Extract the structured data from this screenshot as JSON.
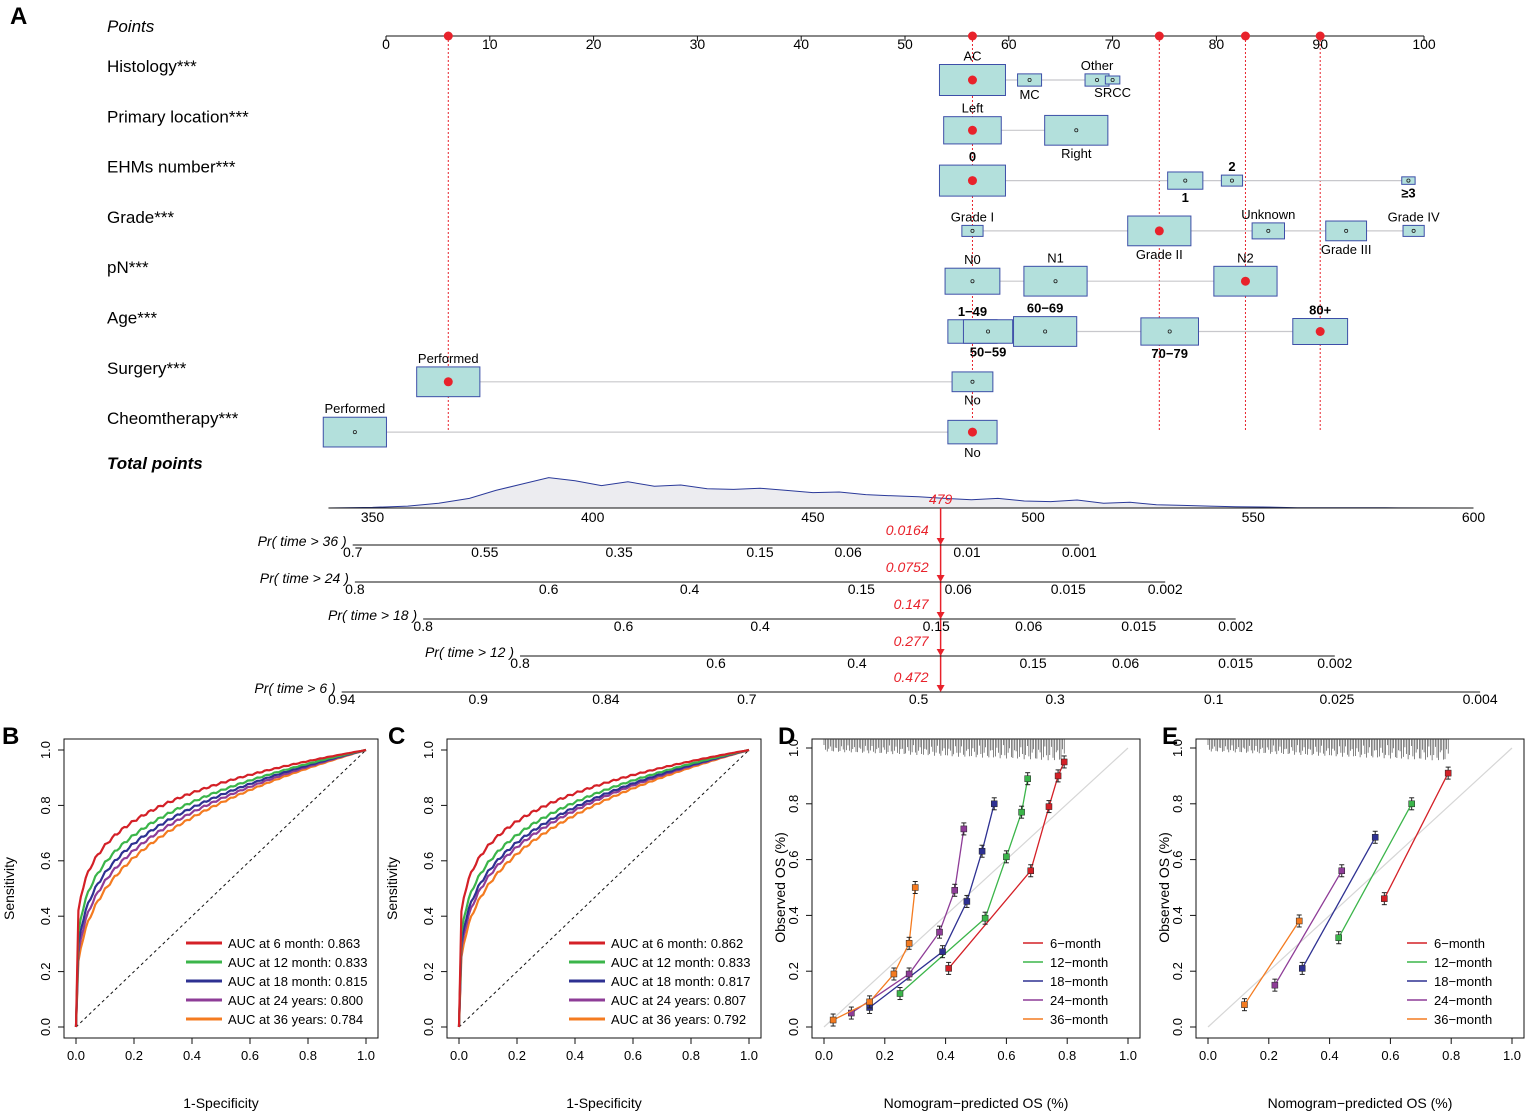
{
  "figure": {
    "panel_labels": [
      "A",
      "B",
      "C",
      "D",
      "E"
    ]
  },
  "colors": {
    "box_fill": "#b3e0dc",
    "box_stroke": "#3d4fa8",
    "marker": "#e8222b",
    "axis": "#111111",
    "density_fill": "#ececf0",
    "density_line": "#2b3a9a",
    "prob_red": "#e8222b"
  },
  "chart_data": [
    {
      "type": "nomogram",
      "panel": "A",
      "points_axis": {
        "label": "Points",
        "range": [
          0,
          100
        ],
        "ticks": [
          0,
          10,
          20,
          30,
          40,
          50,
          60,
          70,
          80,
          90,
          100
        ]
      },
      "selected_points": [
        6,
        56.5,
        74.5,
        82.8,
        90
      ],
      "variables": [
        {
          "label": "Histology***",
          "levels": [
            {
              "name": "AC",
              "points": 56.5,
              "weight": 1.0,
              "selected": true,
              "label_pos": "above"
            },
            {
              "name": "MC",
              "points": 62,
              "weight": 0.25,
              "selected": false,
              "label_pos": "below"
            },
            {
              "name": "Other",
              "points": 68.5,
              "weight": 0.25,
              "selected": false,
              "label_pos": "above"
            },
            {
              "name": "SRCC",
              "points": 70,
              "weight": 0.08,
              "selected": false,
              "label_pos": "below"
            }
          ]
        },
        {
          "label": "Primary location***",
          "levels": [
            {
              "name": "Left",
              "points": 56.5,
              "weight": 0.85,
              "selected": true,
              "label_pos": "above"
            },
            {
              "name": "Right",
              "points": 66.5,
              "weight": 0.95,
              "selected": false,
              "label_pos": "below"
            }
          ]
        },
        {
          "label": "EHMs number***",
          "levels": [
            {
              "name": "0",
              "points": 56.5,
              "weight": 1.0,
              "selected": true,
              "label_pos": "above"
            },
            {
              "name": "1",
              "points": 77,
              "weight": 0.45,
              "selected": false,
              "label_pos": "below"
            },
            {
              "name": "2",
              "points": 81.5,
              "weight": 0.2,
              "selected": false,
              "label_pos": "above"
            },
            {
              "name": "≥3",
              "points": 98.5,
              "weight": 0.06,
              "selected": false,
              "label_pos": "below"
            }
          ]
        },
        {
          "label": "Grade***",
          "levels": [
            {
              "name": "Grade I",
              "points": 56.5,
              "weight": 0.2,
              "selected": false,
              "label_pos": "above"
            },
            {
              "name": "Grade II",
              "points": 74.5,
              "weight": 0.95,
              "selected": true,
              "label_pos": "below"
            },
            {
              "name": "Unknown",
              "points": 85,
              "weight": 0.4,
              "selected": false,
              "label_pos": "above"
            },
            {
              "name": "Grade III",
              "points": 92.5,
              "weight": 0.55,
              "selected": false,
              "label_pos": "below"
            },
            {
              "name": "Grade IV",
              "points": 99,
              "weight": 0.2,
              "selected": false,
              "label_pos": "above"
            }
          ]
        },
        {
          "label": "pN***",
          "levels": [
            {
              "name": "N0",
              "points": 56.5,
              "weight": 0.8,
              "selected": false,
              "label_pos": "above"
            },
            {
              "name": "N1",
              "points": 64.5,
              "weight": 0.95,
              "selected": false,
              "label_pos": "above"
            },
            {
              "name": "N2",
              "points": 82.8,
              "weight": 0.95,
              "selected": true,
              "label_pos": "above"
            }
          ]
        },
        {
          "label": "Age***",
          "levels": [
            {
              "name": "1−49",
              "points": 56.5,
              "weight": 0.7,
              "selected": false,
              "label_pos": "above"
            },
            {
              "name": "50−59",
              "points": 58,
              "weight": 0.7,
              "selected": false,
              "label_pos": "below"
            },
            {
              "name": "60−69",
              "points": 63.5,
              "weight": 0.95,
              "selected": false,
              "label_pos": "above"
            },
            {
              "name": "70−79",
              "points": 75.5,
              "weight": 0.85,
              "selected": false,
              "label_pos": "below"
            },
            {
              "name": "80+",
              "points": 90,
              "weight": 0.8,
              "selected": true,
              "label_pos": "above"
            }
          ]
        },
        {
          "label": "Surgery***",
          "levels": [
            {
              "name": "Performed",
              "points": 6,
              "weight": 0.95,
              "selected": true,
              "label_pos": "above"
            },
            {
              "name": "No",
              "points": 56.5,
              "weight": 0.55,
              "selected": false,
              "label_pos": "below"
            }
          ]
        },
        {
          "label": "Cheomtherapy***",
          "levels": [
            {
              "name": "Performed",
              "points": -3,
              "weight": 0.95,
              "selected": false,
              "label_pos": "above"
            },
            {
              "name": "No",
              "points": 56.5,
              "weight": 0.7,
              "selected": true,
              "label_pos": "below"
            }
          ]
        }
      ],
      "total_points": {
        "label": "Total points",
        "range": [
          340,
          600
        ],
        "ticks": [
          350,
          400,
          450,
          500,
          550,
          600
        ],
        "value": 479,
        "value_label": "479",
        "density": [
          [
            340,
            0
          ],
          [
            350,
            0.02
          ],
          [
            358,
            0.06
          ],
          [
            365,
            0.15
          ],
          [
            372,
            0.3
          ],
          [
            378,
            0.55
          ],
          [
            384,
            0.75
          ],
          [
            390,
            0.95
          ],
          [
            396,
            0.85
          ],
          [
            402,
            0.7
          ],
          [
            408,
            0.82
          ],
          [
            414,
            0.68
          ],
          [
            420,
            0.72
          ],
          [
            426,
            0.6
          ],
          [
            432,
            0.58
          ],
          [
            438,
            0.62
          ],
          [
            444,
            0.55
          ],
          [
            450,
            0.48
          ],
          [
            456,
            0.5
          ],
          [
            462,
            0.42
          ],
          [
            468,
            0.38
          ],
          [
            474,
            0.35
          ],
          [
            480,
            0.3
          ],
          [
            486,
            0.26
          ],
          [
            492,
            0.3
          ],
          [
            498,
            0.22
          ],
          [
            504,
            0.2
          ],
          [
            510,
            0.25
          ],
          [
            516,
            0.15
          ],
          [
            522,
            0.18
          ],
          [
            528,
            0.1
          ],
          [
            534,
            0.08
          ],
          [
            540,
            0.06
          ],
          [
            546,
            0.04
          ],
          [
            552,
            0.03
          ],
          [
            560,
            0.01
          ],
          [
            580,
            0.005
          ],
          [
            598,
            0
          ]
        ]
      },
      "probability_axes": [
        {
          "label": "Pr( time > 36 )",
          "ticks": [
            {
              "label": "0.7",
              "total": 345.5
            },
            {
              "label": "0.55",
              "total": 375.5
            },
            {
              "label": "0.35",
              "total": 406
            },
            {
              "label": "0.15",
              "total": 438
            },
            {
              "label": "0.06",
              "total": 458
            },
            {
              "label": "0.01",
              "total": 485
            },
            {
              "label": "0.001",
              "total": 510.5
            }
          ],
          "line_from_total": 345.5,
          "line_to_total": 510.5,
          "value_label": "0.0164"
        },
        {
          "label": "Pr( time > 24 )",
          "ticks": [
            {
              "label": "0.8",
              "total": 346
            },
            {
              "label": "0.6",
              "total": 390
            },
            {
              "label": "0.4",
              "total": 422
            },
            {
              "label": "0.15",
              "total": 461
            },
            {
              "label": "0.06",
              "total": 483
            },
            {
              "label": "0.015",
              "total": 508
            },
            {
              "label": "0.002",
              "total": 530
            }
          ],
          "line_from_total": 346,
          "line_to_total": 530,
          "value_label": "0.0752"
        },
        {
          "label": "Pr( time > 18 )",
          "ticks": [
            {
              "label": "0.8",
              "total": 361.5
            },
            {
              "label": "0.6",
              "total": 407
            },
            {
              "label": "0.4",
              "total": 438
            },
            {
              "label": "0.15",
              "total": 478
            },
            {
              "label": "0.06",
              "total": 499
            },
            {
              "label": "0.015",
              "total": 524
            },
            {
              "label": "0.002",
              "total": 546
            }
          ],
          "line_from_total": 361.5,
          "line_to_total": 546,
          "value_label": "0.147"
        },
        {
          "label": "Pr( time > 12 )",
          "ticks": [
            {
              "label": "0.8",
              "total": 383.5
            },
            {
              "label": "0.6",
              "total": 428
            },
            {
              "label": "0.4",
              "total": 460
            },
            {
              "label": "0.15",
              "total": 500
            },
            {
              "label": "0.06",
              "total": 521
            },
            {
              "label": "0.015",
              "total": 546
            },
            {
              "label": "0.002",
              "total": 568.5
            }
          ],
          "line_from_total": 383.5,
          "line_to_total": 568.5,
          "value_label": "0.277"
        },
        {
          "label": "Pr( time > 6 )",
          "ticks": [
            {
              "label": "0.94",
              "total": 343
            },
            {
              "label": "0.9",
              "total": 374
            },
            {
              "label": "0.84",
              "total": 403
            },
            {
              "label": "0.7",
              "total": 435
            },
            {
              "label": "0.5",
              "total": 474
            },
            {
              "label": "0.3",
              "total": 505
            },
            {
              "label": "0.1",
              "total": 541
            },
            {
              "label": "0.025",
              "total": 569
            },
            {
              "label": "0.004",
              "total": 601.5
            }
          ],
          "line_from_total": 343,
          "line_to_total": 601.5,
          "value_label": "0.472"
        }
      ]
    },
    {
      "type": "line",
      "subtype": "roc",
      "panel": "B",
      "xlabel": "1-Specificity",
      "ylabel": "Sensitivity",
      "xlim": [
        0,
        1
      ],
      "ylim": [
        0,
        1
      ],
      "ticks": [
        "0.0",
        "0.2",
        "0.4",
        "0.6",
        "0.8",
        "1.0"
      ],
      "legend_pos": "bottom-right",
      "series": [
        {
          "name": "AUC at 6 month: 0.863",
          "auc": 0.863,
          "color": "#d42027"
        },
        {
          "name": "AUC at 12 month: 0.833",
          "auc": 0.833,
          "color": "#3bb54a"
        },
        {
          "name": "AUC at 18 month: 0.815",
          "auc": 0.815,
          "color": "#2e3192"
        },
        {
          "name": "AUC at 24 years: 0.800",
          "auc": 0.8,
          "color": "#8e3c97"
        },
        {
          "name": "AUC at 36 years: 0.784",
          "auc": 0.784,
          "color": "#f47b20"
        }
      ]
    },
    {
      "type": "line",
      "subtype": "roc",
      "panel": "C",
      "xlabel": "1-Specificity",
      "ylabel": "Sensitivity",
      "xlim": [
        0,
        1
      ],
      "ylim": [
        0,
        1
      ],
      "ticks": [
        "0.0",
        "0.2",
        "0.4",
        "0.6",
        "0.8",
        "1.0"
      ],
      "legend_pos": "bottom-right",
      "series": [
        {
          "name": "AUC at 6 month: 0.862",
          "auc": 0.862,
          "color": "#d42027"
        },
        {
          "name": "AUC at 12 month: 0.833",
          "auc": 0.833,
          "color": "#3bb54a"
        },
        {
          "name": "AUC at 18 month: 0.817",
          "auc": 0.817,
          "color": "#2e3192"
        },
        {
          "name": "AUC at 24 years: 0.807",
          "auc": 0.807,
          "color": "#8e3c97"
        },
        {
          "name": "AUC at 36 years: 0.792",
          "auc": 0.792,
          "color": "#f47b20"
        }
      ]
    },
    {
      "type": "line",
      "subtype": "calibration",
      "panel": "D",
      "xlabel": "Nomogram−predicted OS (%)",
      "ylabel": "Observed OS (%)",
      "xlim": [
        0,
        1
      ],
      "ylim": [
        0,
        1
      ],
      "ticks": [
        "0.0",
        "0.2",
        "0.4",
        "0.6",
        "0.8",
        "1.0"
      ],
      "legend_pos": "bottom-right",
      "series": [
        {
          "name": "6−month",
          "color": "#d42027",
          "x": [
            0.41,
            0.68,
            0.74,
            0.77,
            0.79
          ],
          "y": [
            0.21,
            0.56,
            0.79,
            0.9,
            0.95
          ]
        },
        {
          "name": "12−month",
          "color": "#3bb54a",
          "x": [
            0.25,
            0.53,
            0.6,
            0.65,
            0.67
          ],
          "y": [
            0.12,
            0.39,
            0.61,
            0.77,
            0.89
          ]
        },
        {
          "name": "18−month",
          "color": "#2e3192",
          "x": [
            0.15,
            0.39,
            0.47,
            0.52,
            0.56
          ],
          "y": [
            0.07,
            0.27,
            0.45,
            0.63,
            0.8
          ]
        },
        {
          "name": "24−month",
          "color": "#8e3c97",
          "x": [
            0.09,
            0.28,
            0.38,
            0.43,
            0.46
          ],
          "y": [
            0.05,
            0.19,
            0.34,
            0.49,
            0.71
          ]
        },
        {
          "name": "36−month",
          "color": "#f47b20",
          "x": [
            0.03,
            0.15,
            0.23,
            0.28,
            0.3
          ],
          "y": [
            0.025,
            0.09,
            0.19,
            0.3,
            0.5
          ]
        }
      ]
    },
    {
      "type": "line",
      "subtype": "calibration",
      "panel": "E",
      "xlabel": "Nomogram−predicted OS (%)",
      "ylabel": "Observed OS (%)",
      "xlim": [
        0,
        1
      ],
      "ylim": [
        0,
        1
      ],
      "ticks": [
        "0.0",
        "0.2",
        "0.4",
        "0.6",
        "0.8",
        "1.0"
      ],
      "legend_pos": "bottom-right",
      "series": [
        {
          "name": "6−month",
          "color": "#d42027",
          "x": [
            0.58,
            0.79
          ],
          "y": [
            0.46,
            0.91
          ]
        },
        {
          "name": "12−month",
          "color": "#3bb54a",
          "x": [
            0.43,
            0.67
          ],
          "y": [
            0.32,
            0.8
          ]
        },
        {
          "name": "18−month",
          "color": "#2e3192",
          "x": [
            0.31,
            0.55
          ],
          "y": [
            0.21,
            0.68
          ]
        },
        {
          "name": "24−month",
          "color": "#8e3c97",
          "x": [
            0.22,
            0.44
          ],
          "y": [
            0.15,
            0.56
          ]
        },
        {
          "name": "36−month",
          "color": "#f47b20",
          "x": [
            0.12,
            0.3
          ],
          "y": [
            0.08,
            0.38
          ]
        }
      ]
    }
  ]
}
